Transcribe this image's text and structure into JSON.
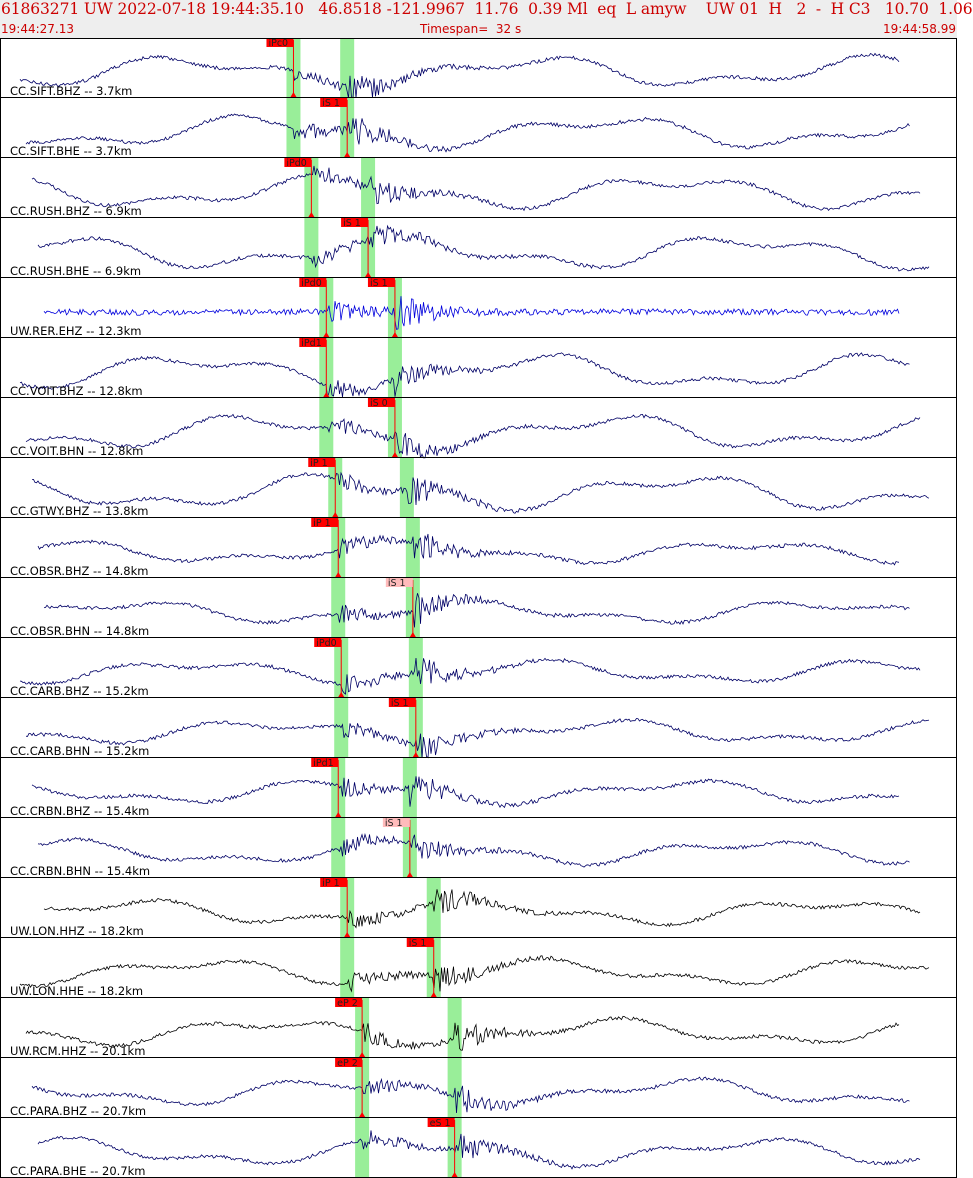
{
  "header": {
    "title": "61863271 UW 2022-07-18 19:44:35.10   46.8518 -121.9967  11.76  0.39 Ml  eq  L amyw    UW 01  H   2  -  H C3   10.70  1.06",
    "start_time": "19:44:27.13",
    "timespan": "Timespan=  32 s",
    "end_time": "19:44:58.99"
  },
  "chart_data": {
    "type": "line",
    "title": "",
    "x_unit": "s",
    "xlim": [
      0,
      32
    ],
    "colors": {
      "trace": "#000066",
      "trace_highlight": "#0000dd",
      "trace_black": "#000000",
      "pick": "#ff0000",
      "pick_light": "#ffbbbb",
      "window": "#99ee99"
    },
    "traces": [
      {
        "label": "CC.SIFT.BHZ -- 3.7km",
        "color": "#000066",
        "pick_label": "iPc0",
        "pick_type": "P",
        "pick_t": 9.8,
        "pick_light": false,
        "p_t": 9.8,
        "s_t": 11.6
      },
      {
        "label": "CC.SIFT.BHE -- 3.7km",
        "color": "#000066",
        "pick_label": "iS 1",
        "pick_type": "S",
        "pick_t": 11.6,
        "pick_light": false,
        "p_t": 9.8,
        "s_t": 11.6
      },
      {
        "label": "CC.RUSH.BHZ -- 6.9km",
        "color": "#000066",
        "pick_label": "iPd0",
        "pick_type": "P",
        "pick_t": 10.4,
        "pick_light": false,
        "p_t": 10.4,
        "s_t": 12.3
      },
      {
        "label": "CC.RUSH.BHE -- 6.9km",
        "color": "#000066",
        "pick_label": "iS 1",
        "pick_type": "S",
        "pick_t": 12.3,
        "pick_light": false,
        "p_t": 10.4,
        "s_t": 12.3
      },
      {
        "label": "UW.RER.EHZ -- 12.3km",
        "color": "#0000dd",
        "pick_label": "iPd0",
        "pick_type": "P",
        "pick_t": 10.9,
        "pick_label2": "iS 1",
        "pick_t2": 13.2,
        "pick_light": false,
        "p_t": 10.9,
        "s_t": 13.2
      },
      {
        "label": "CC.VOIT.BHZ -- 12.8km",
        "color": "#000066",
        "pick_label": "iPd1",
        "pick_type": "P",
        "pick_t": 10.9,
        "pick_light": false,
        "p_t": 10.9,
        "s_t": 13.2
      },
      {
        "label": "CC.VOIT.BHN -- 12.8km",
        "color": "#000066",
        "pick_label": "iS 0",
        "pick_type": "S",
        "pick_t": 13.2,
        "pick_light": false,
        "p_t": 10.9,
        "s_t": 13.2
      },
      {
        "label": "CC.GTWY.BHZ -- 13.8km",
        "color": "#000066",
        "pick_label": "iP 1",
        "pick_type": "P",
        "pick_t": 11.2,
        "pick_light": false,
        "p_t": 11.2,
        "s_t": 13.6
      },
      {
        "label": "CC.OBSR.BHZ -- 14.8km",
        "color": "#000066",
        "pick_label": "iP 1",
        "pick_type": "P",
        "pick_t": 11.3,
        "pick_light": false,
        "p_t": 11.3,
        "s_t": 13.8
      },
      {
        "label": "CC.OBSR.BHN -- 14.8km",
        "color": "#000066",
        "pick_label": "iS 1",
        "pick_type": "S",
        "pick_t": 13.8,
        "pick_light": true,
        "p_t": 11.3,
        "s_t": 13.8
      },
      {
        "label": "CC.CARB.BHZ -- 15.2km",
        "color": "#000066",
        "pick_label": "iPd0",
        "pick_type": "P",
        "pick_t": 11.4,
        "pick_light": false,
        "p_t": 11.4,
        "s_t": 13.9
      },
      {
        "label": "CC.CARB.BHN -- 15.2km",
        "color": "#000066",
        "pick_label": "iS 1",
        "pick_type": "S",
        "pick_t": 13.9,
        "pick_light": false,
        "p_t": 11.4,
        "s_t": 13.9
      },
      {
        "label": "CC.CRBN.BHZ -- 15.4km",
        "color": "#000066",
        "pick_label": "iPd1",
        "pick_type": "P",
        "pick_t": 11.3,
        "pick_light": false,
        "p_t": 11.3,
        "s_t": 13.7
      },
      {
        "label": "CC.CRBN.BHN -- 15.4km",
        "color": "#000066",
        "pick_label": "iS 1",
        "pick_type": "S",
        "pick_t": 13.7,
        "pick_light": true,
        "p_t": 11.3,
        "s_t": 13.7
      },
      {
        "label": "UW.LON.HHZ -- 18.2km",
        "color": "#000000",
        "pick_label": "iP 1",
        "pick_type": "P",
        "pick_t": 11.6,
        "pick_light": false,
        "p_t": 11.6,
        "s_t": 14.5
      },
      {
        "label": "UW.LON.HHE -- 18.2km",
        "color": "#000000",
        "pick_label": "iS 1",
        "pick_type": "S",
        "pick_t": 14.5,
        "pick_light": false,
        "p_t": 11.6,
        "s_t": 14.5
      },
      {
        "label": "UW.RCM.HHZ -- 20.1km",
        "color": "#000000",
        "pick_label": "eP 2",
        "pick_type": "P",
        "pick_t": 12.1,
        "pick_light": false,
        "p_t": 12.1,
        "s_t": 15.2
      },
      {
        "label": "CC.PARA.BHZ -- 20.7km",
        "color": "#000066",
        "pick_label": "eP 2",
        "pick_type": "P",
        "pick_t": 12.1,
        "pick_light": false,
        "p_t": 12.1,
        "s_t": 15.2
      },
      {
        "label": "CC.PARA.BHE -- 20.7km",
        "color": "#000066",
        "pick_label": "eS 1",
        "pick_type": "S",
        "pick_t": 15.2,
        "pick_light": false,
        "p_t": 12.1,
        "s_t": 15.2
      }
    ]
  }
}
